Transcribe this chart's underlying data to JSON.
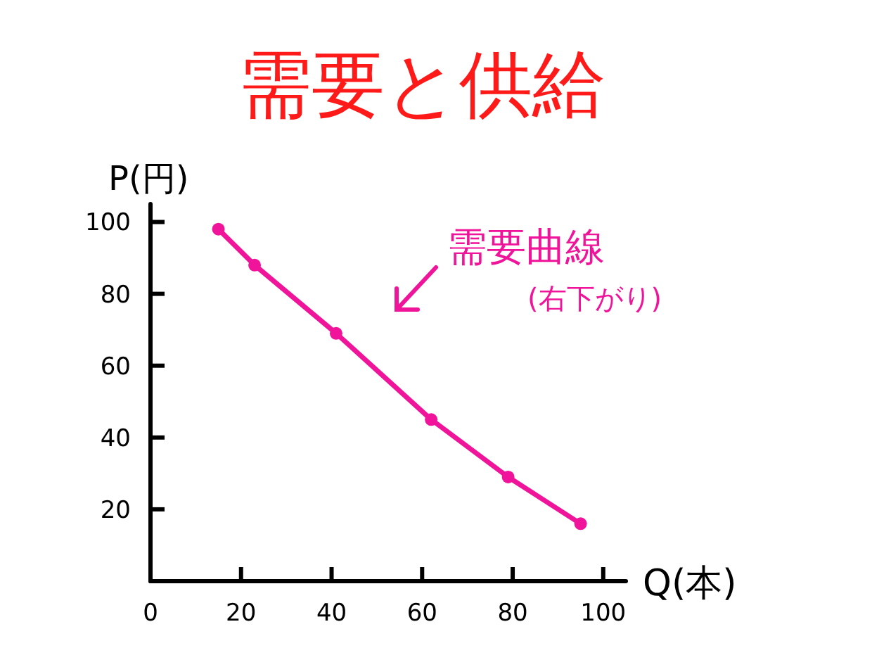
{
  "chart_data": {
    "type": "line",
    "title": "需要と供給",
    "xlabel": "Q(本)",
    "ylabel": "P(円)",
    "x": [
      15,
      23,
      41,
      62,
      79,
      95
    ],
    "series": [
      {
        "color": "#f0149a",
        "values": [
          98,
          88,
          69,
          45,
          29,
          16
        ]
      }
    ],
    "xlim": [
      0,
      105
    ],
    "ylim": [
      0,
      105
    ],
    "xticks": [
      0,
      20,
      40,
      60,
      80,
      100
    ],
    "yticks": [
      20,
      40,
      60,
      80,
      100
    ],
    "annotations": [
      "需要曲線",
      "(右下がり)"
    ],
    "marker": "circle",
    "line_style": "solid",
    "grid": false
  }
}
